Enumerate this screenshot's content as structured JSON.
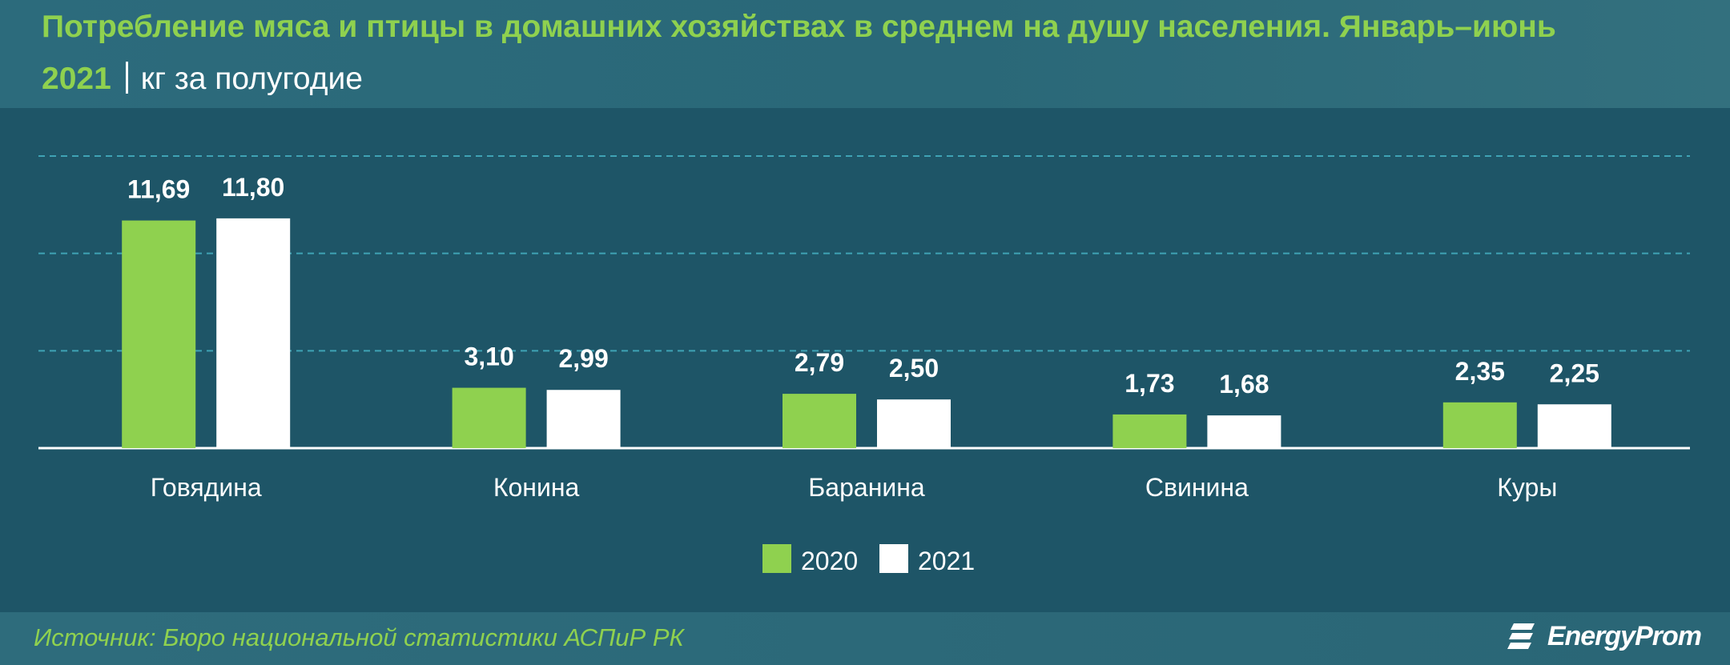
{
  "header": {
    "title": "Потребление мяса и птицы в домашних хозяйствах в среднем на душу населения. Январь–июнь",
    "year": "2021",
    "unit": "кг за полугодие"
  },
  "footer": {
    "source": "Источник: Бюро национальной статистики АСПиР РК",
    "brand": "EnergyProm"
  },
  "colors": {
    "series_2020": "#8fd14f",
    "series_2021": "#ffffff",
    "background": "#1e5567",
    "gridline": "#3fa3b5",
    "text": "#ffffff"
  },
  "icons": {
    "brand_logo": "energyprom-logo-icon"
  },
  "chart_data": {
    "type": "bar",
    "categories": [
      "Говядина",
      "Конина",
      "Баранина",
      "Свинина",
      "Куры"
    ],
    "series": [
      {
        "name": "2020",
        "values": [
          11.69,
          3.1,
          2.79,
          1.73,
          2.35
        ],
        "labels": [
          "11,69",
          "3,10",
          "2,79",
          "1,73",
          "2,35"
        ]
      },
      {
        "name": "2021",
        "values": [
          11.8,
          2.99,
          2.5,
          1.68,
          2.25
        ],
        "labels": [
          "11,80",
          "2,99",
          "2,50",
          "1,68",
          "2,25"
        ]
      }
    ],
    "ylim": [
      0,
      15
    ],
    "gridlines": [
      5,
      10,
      15
    ],
    "grid": true,
    "legend": "bottom-center"
  }
}
